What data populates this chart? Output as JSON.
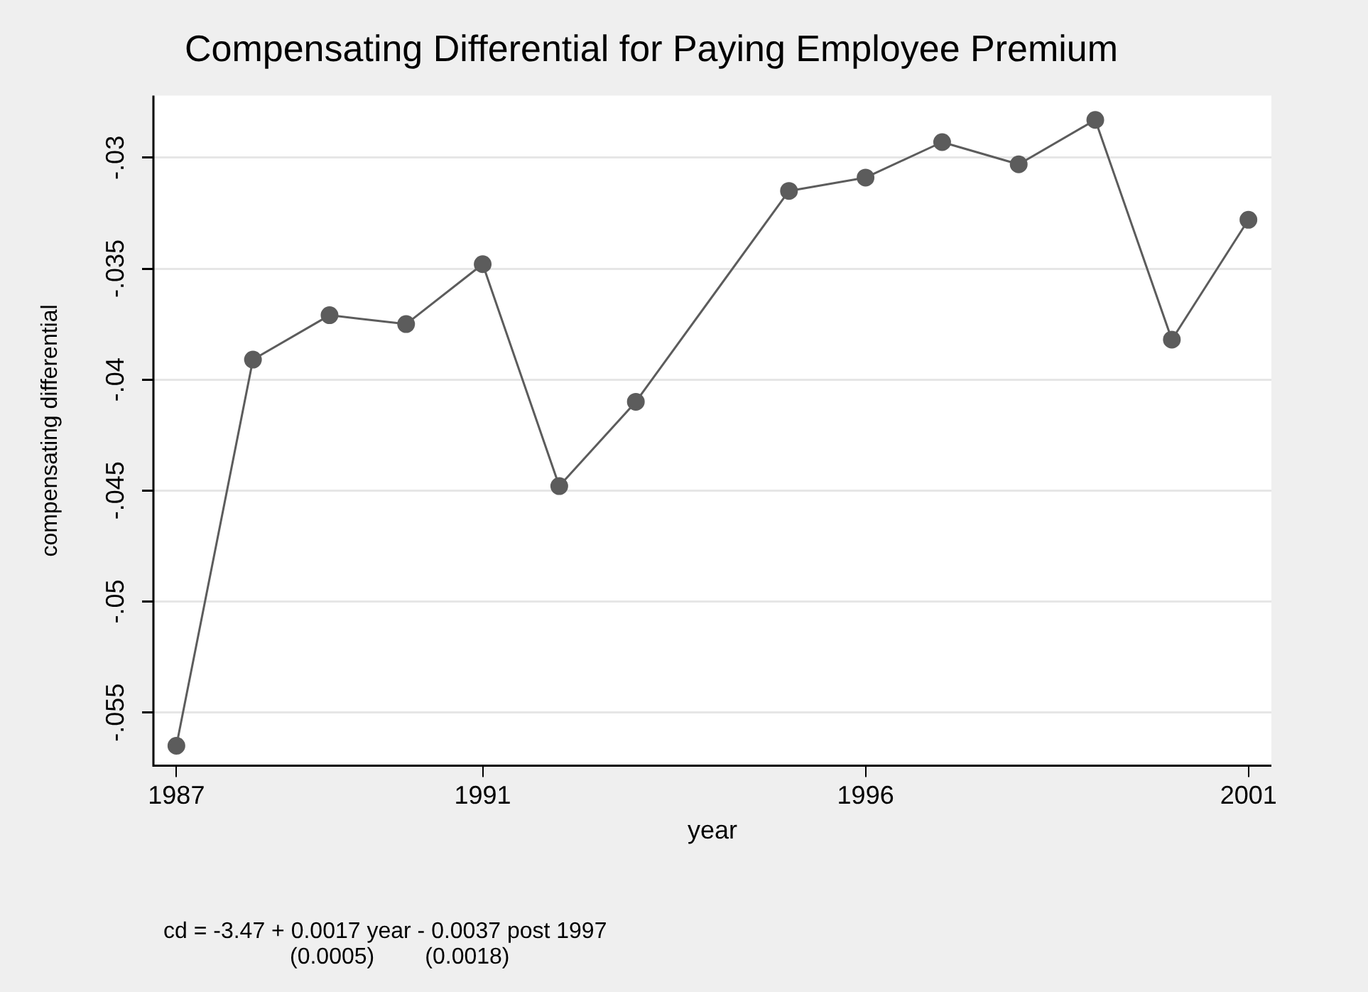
{
  "chart_data": {
    "type": "line",
    "title": "Compensating Differential for Paying Employee Premium",
    "xlabel": "year",
    "ylabel": "compensating differential",
    "x": [
      1987,
      1988,
      1989,
      1990,
      1991,
      1992,
      1993,
      1995,
      1996,
      1997,
      1998,
      1999,
      2000,
      2001
    ],
    "series": [
      {
        "color": "#5c5c5c",
        "values": [
          -0.0565,
          -0.0391,
          -0.0371,
          -0.0375,
          -0.0348,
          -0.0448,
          -0.041,
          -0.0315,
          -0.0309,
          -0.0293,
          -0.0303,
          -0.0283,
          -0.0382,
          -0.0328
        ]
      }
    ],
    "marker": "circle",
    "line_style": "solid",
    "grid": "y",
    "legend": false,
    "xlim": [
      1986.7,
      2001.3
    ],
    "xticks": [
      1987,
      1991,
      1996,
      2001
    ],
    "ylim": [
      -0.0574,
      -0.0272
    ],
    "yticks": [
      {
        "value": -0.055,
        "label": "-.055"
      },
      {
        "value": -0.05,
        "label": "-.05"
      },
      {
        "value": -0.045,
        "label": "-.045"
      },
      {
        "value": -0.04,
        "label": "-.04"
      },
      {
        "value": -0.035,
        "label": "-.035"
      },
      {
        "value": -0.03,
        "label": "-.03"
      }
    ],
    "annotations": [
      "cd = -3.47 + 0.0017 year - 0.0037 post 1997",
      "(0.0005)        (0.0018)"
    ]
  }
}
